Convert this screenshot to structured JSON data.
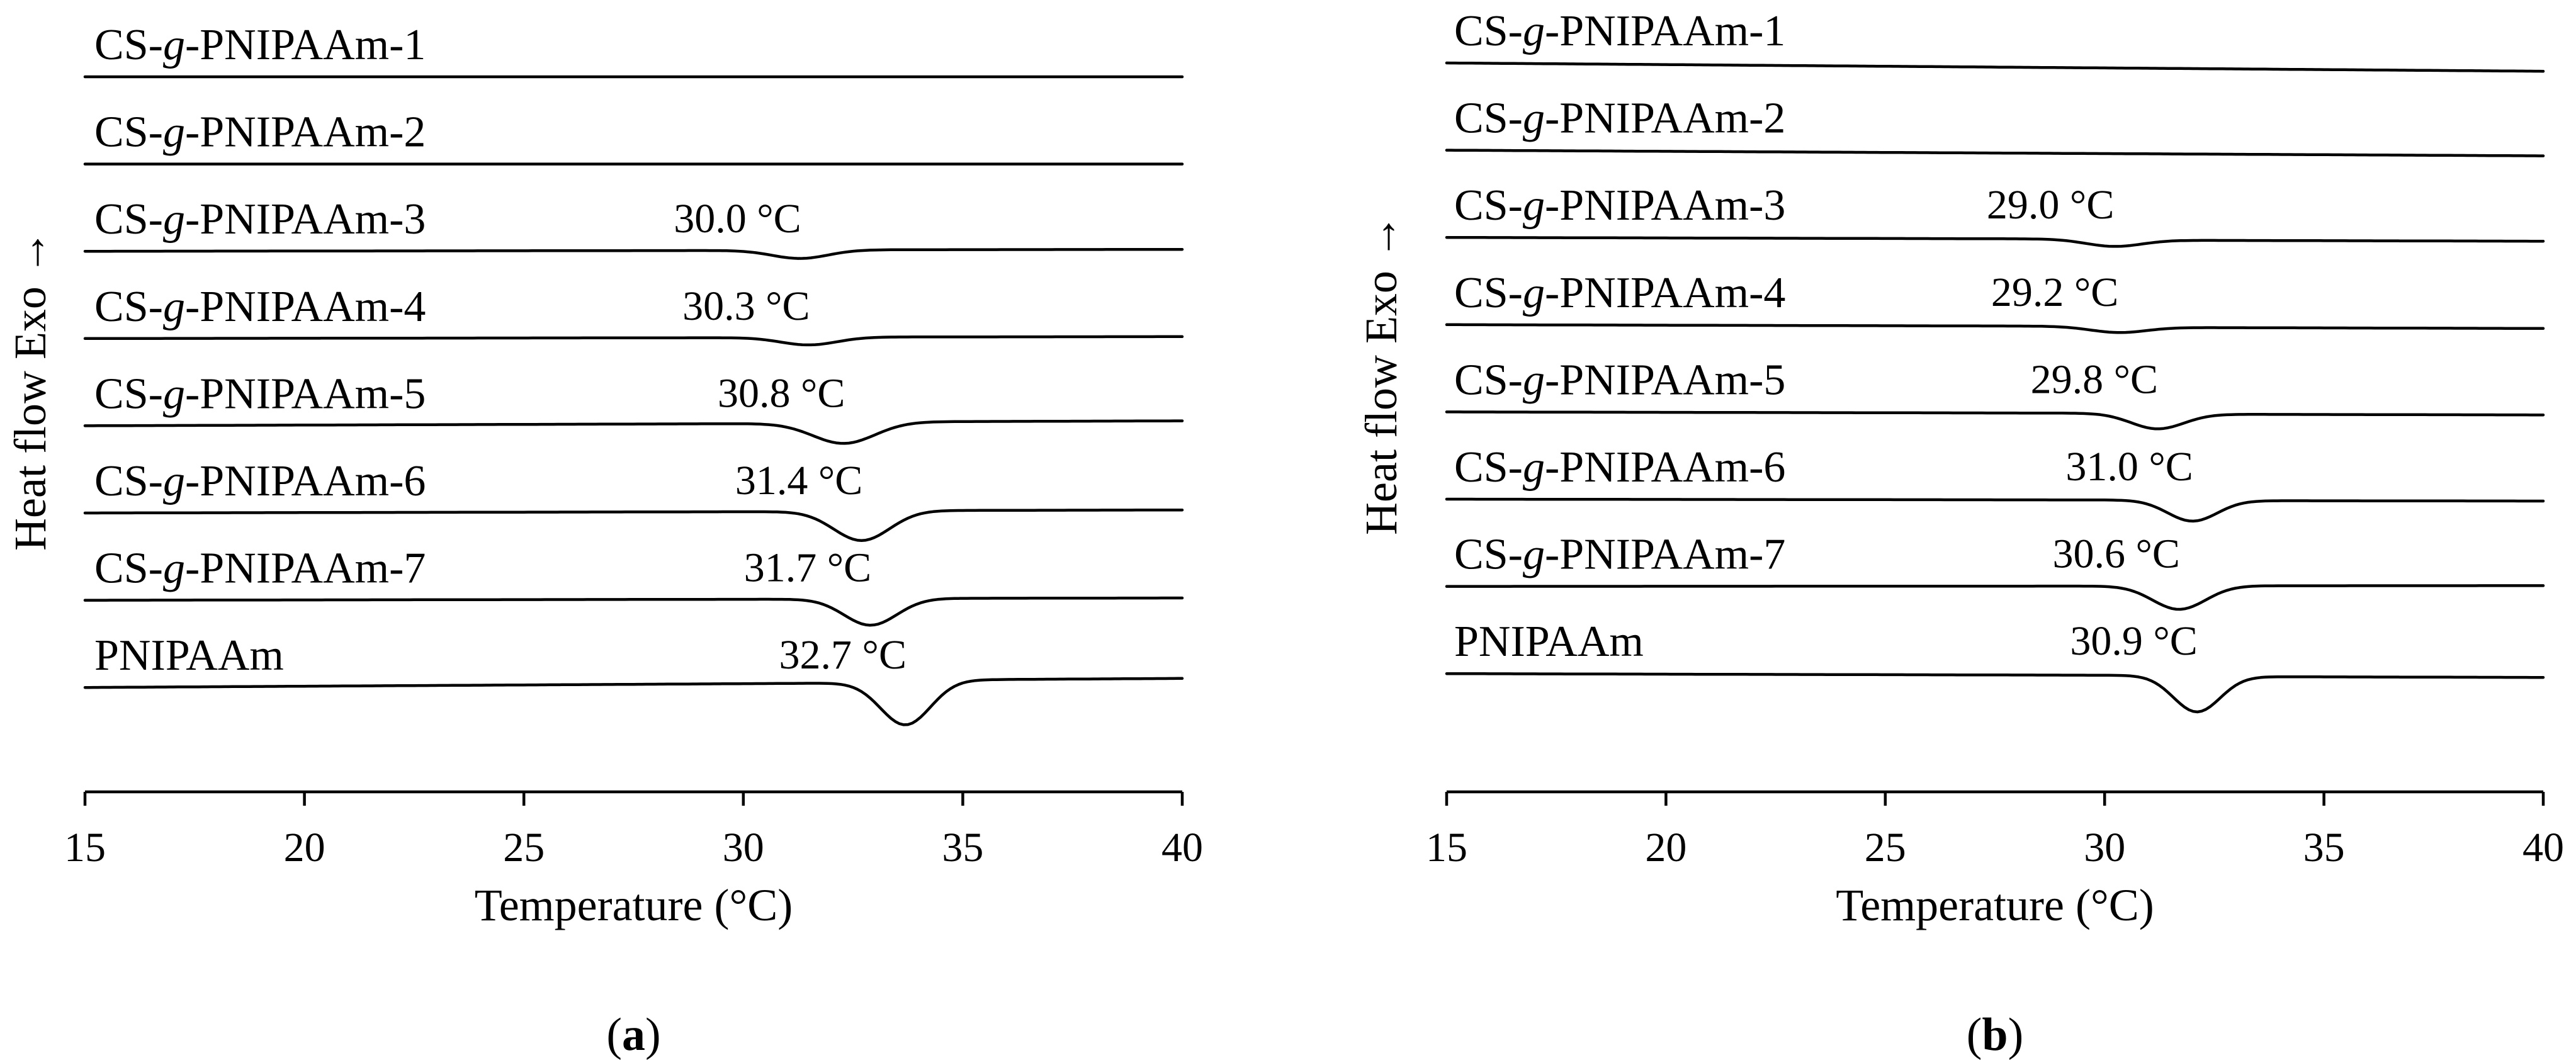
{
  "chart_data": [
    {
      "type": "line",
      "panel_label": "a",
      "xlabel": "Temperature (°C)",
      "ylabel": "Heat flow Exo →",
      "xlim": [
        15,
        40
      ],
      "xticks": [
        15,
        20,
        25,
        30,
        35,
        40
      ],
      "grid": false,
      "series": [
        {
          "name": "CS-g-PNIPAAm-1",
          "peak_label": "",
          "peak": null,
          "depth": 0,
          "width": 1,
          "start_y": 0,
          "end_y": 0
        },
        {
          "name": "CS-g-PNIPAAm-2",
          "peak_label": "",
          "peak": null,
          "depth": 0,
          "width": 1,
          "start_y": 0,
          "end_y": 0
        },
        {
          "name": "CS-g-PNIPAAm-3",
          "peak_label": "30.0 °C",
          "peak": 31.3,
          "depth": 0.22,
          "width": 0.9,
          "start_y": 0,
          "end_y": 0.05
        },
        {
          "name": "CS-g-PNIPAAm-4",
          "peak_label": "30.3 °C",
          "peak": 31.5,
          "depth": 0.2,
          "width": 0.9,
          "start_y": 0,
          "end_y": 0.05
        },
        {
          "name": "CS-g-PNIPAAm-5",
          "peak_label": "30.8 °C",
          "peak": 32.3,
          "depth": 0.55,
          "width": 1.0,
          "start_y": 0,
          "end_y": 0.13
        },
        {
          "name": "CS-g-PNIPAAm-6",
          "peak_label": "31.4 °C",
          "peak": 32.7,
          "depth": 0.78,
          "width": 0.9,
          "start_y": 0,
          "end_y": 0.08
        },
        {
          "name": "CS-g-PNIPAAm-7",
          "peak_label": "31.7 °C",
          "peak": 32.9,
          "depth": 0.7,
          "width": 0.85,
          "start_y": 0,
          "end_y": 0.06
        },
        {
          "name": "PNIPAAm",
          "peak_label": "32.7 °C",
          "peak": 33.7,
          "depth": 1.15,
          "width": 0.8,
          "start_y": 0,
          "end_y": 0.24
        }
      ]
    },
    {
      "type": "line",
      "panel_label": "b",
      "xlabel": "Temperature (°C)",
      "ylabel": "Heat flow Exo →",
      "xlim": [
        15,
        40
      ],
      "xticks": [
        15,
        20,
        25,
        30,
        35,
        40
      ],
      "grid": false,
      "series": [
        {
          "name": "CS-g-PNIPAAm-1",
          "peak_label": "",
          "peak": null,
          "depth": 0,
          "width": 1,
          "start_y": 0,
          "end_y": -0.22
        },
        {
          "name": "CS-g-PNIPAAm-2",
          "peak_label": "",
          "peak": null,
          "depth": 0,
          "width": 1,
          "start_y": 0,
          "end_y": -0.15
        },
        {
          "name": "CS-g-PNIPAAm-3",
          "peak_label": "29.0 °C",
          "peak": 30.2,
          "depth": 0.18,
          "width": 0.9,
          "start_y": 0,
          "end_y": -0.1
        },
        {
          "name": "CS-g-PNIPAAm-4",
          "peak_label": "29.2 °C",
          "peak": 30.3,
          "depth": 0.15,
          "width": 0.9,
          "start_y": 0,
          "end_y": -0.1
        },
        {
          "name": "CS-g-PNIPAAm-5",
          "peak_label": "29.8 °C",
          "peak": 31.2,
          "depth": 0.4,
          "width": 0.85,
          "start_y": 0,
          "end_y": -0.08
        },
        {
          "name": "CS-g-PNIPAAm-6",
          "peak_label": "31.0 °C",
          "peak": 32.0,
          "depth": 0.55,
          "width": 0.8,
          "start_y": 0,
          "end_y": -0.05
        },
        {
          "name": "CS-g-PNIPAAm-7",
          "peak_label": "30.6 °C",
          "peak": 31.7,
          "depth": 0.62,
          "width": 0.85,
          "start_y": 0,
          "end_y": 0.02
        },
        {
          "name": "PNIPAAm",
          "peak_label": "30.9 °C",
          "peak": 32.1,
          "depth": 0.95,
          "width": 0.75,
          "start_y": 0,
          "end_y": -0.1
        }
      ]
    }
  ]
}
